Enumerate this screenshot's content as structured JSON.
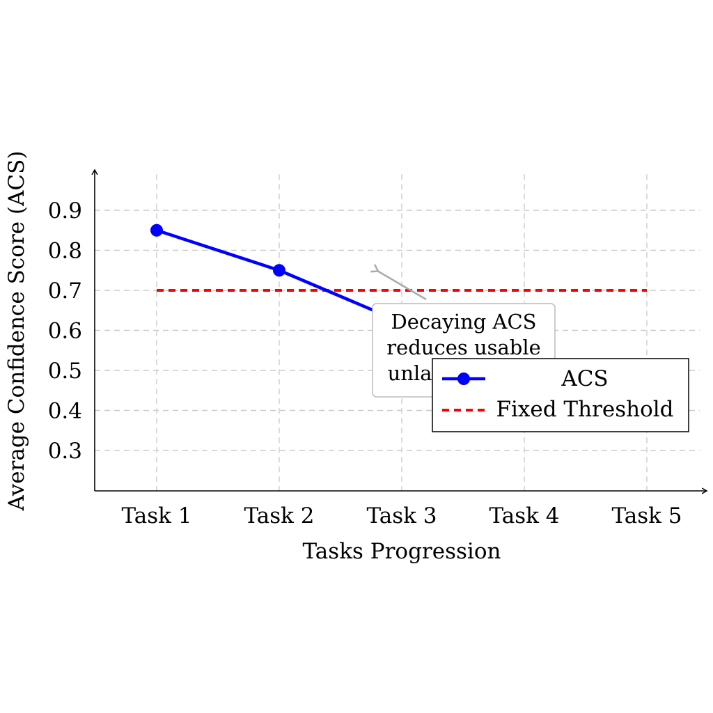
{
  "chart_data": {
    "type": "line",
    "title": "",
    "xlabel": "Tasks Progression",
    "ylabel": "Average Confidence Score (ACS)",
    "categories": [
      "Task 1",
      "Task 2",
      "Task 3",
      "Task 4",
      "Task 5"
    ],
    "y_ticks": [
      "0.3",
      "0.4",
      "0.5",
      "0.6",
      "0.7",
      "0.8",
      "0.9"
    ],
    "ylim": [
      0.2,
      0.99
    ],
    "grid": true,
    "legend_position": "right",
    "series": [
      {
        "name": "ACS",
        "values": [
          0.85,
          0.75,
          0.62,
          0.5,
          null
        ],
        "color": "#0000ff",
        "style": "solid",
        "marker": "circle"
      },
      {
        "name": "Fixed Threshold",
        "values": [
          0.7,
          0.7,
          0.7,
          0.7,
          0.7
        ],
        "color": "#ff0000",
        "style": "dashed",
        "marker": "none"
      }
    ],
    "annotation": {
      "lines": [
        "Decaying ACS",
        "reduces usable",
        "unlabeled data"
      ],
      "arrow_color": "#aaaaaa"
    }
  }
}
